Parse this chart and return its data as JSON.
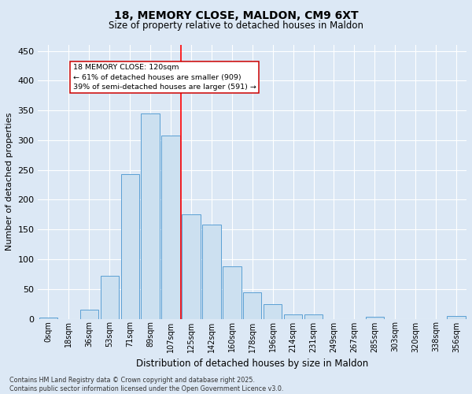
{
  "title": "18, MEMORY CLOSE, MALDON, CM9 6XT",
  "subtitle": "Size of property relative to detached houses in Maldon",
  "xlabel": "Distribution of detached houses by size in Maldon",
  "ylabel": "Number of detached properties",
  "bins": [
    "0sqm",
    "18sqm",
    "36sqm",
    "53sqm",
    "71sqm",
    "89sqm",
    "107sqm",
    "125sqm",
    "142sqm",
    "160sqm",
    "178sqm",
    "196sqm",
    "214sqm",
    "231sqm",
    "249sqm",
    "267sqm",
    "285sqm",
    "303sqm",
    "320sqm",
    "338sqm",
    "356sqm"
  ],
  "values": [
    2,
    0,
    15,
    72,
    243,
    345,
    308,
    175,
    158,
    88,
    45,
    25,
    8,
    7,
    0,
    0,
    3,
    0,
    0,
    0,
    5
  ],
  "bar_color": "#cce0f0",
  "bar_edge_color": "#5a9fd4",
  "red_line_bin_index": 7,
  "red_line_label": "18 MEMORY CLOSE: 120sqm",
  "annotation_line2": "← 61% of detached houses are smaller (909)",
  "annotation_line3": "39% of semi-detached houses are larger (591) →",
  "annotation_box_color": "#ffffff",
  "annotation_box_edge": "#cc0000",
  "background_color": "#dce8f5",
  "ylim": [
    0,
    460
  ],
  "yticks": [
    0,
    50,
    100,
    150,
    200,
    250,
    300,
    350,
    400,
    450
  ],
  "footer_line1": "Contains HM Land Registry data © Crown copyright and database right 2025.",
  "footer_line2": "Contains public sector information licensed under the Open Government Licence v3.0."
}
